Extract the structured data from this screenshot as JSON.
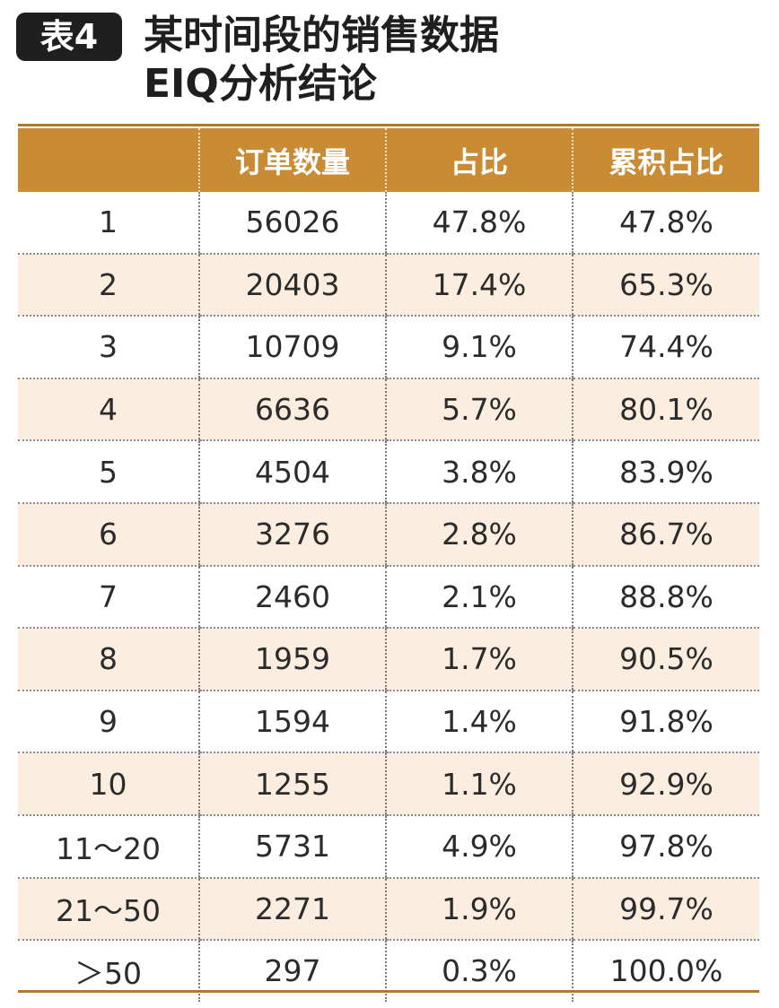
{
  "title": {
    "badge": "表4",
    "line1": "某时间段的销售数据",
    "line2": "EIQ分析结论"
  },
  "colors": {
    "header_bg": "#c98c35",
    "alt_row_bg": "#fbeee0",
    "rule": "#b07a2a",
    "badge_bg": "#1f1f1f"
  },
  "table": {
    "headers": [
      "",
      "订单数量",
      "占比",
      "累积占比"
    ],
    "rows": [
      [
        "1",
        "56026",
        "47.8%",
        "47.8%"
      ],
      [
        "2",
        "20403",
        "17.4%",
        "65.3%"
      ],
      [
        "3",
        "10709",
        "9.1%",
        "74.4%"
      ],
      [
        "4",
        "6636",
        "5.7%",
        "80.1%"
      ],
      [
        "5",
        "4504",
        "3.8%",
        "83.9%"
      ],
      [
        "6",
        "3276",
        "2.8%",
        "86.7%"
      ],
      [
        "7",
        "2460",
        "2.1%",
        "88.8%"
      ],
      [
        "8",
        "1959",
        "1.7%",
        "90.5%"
      ],
      [
        "9",
        "1594",
        "1.4%",
        "91.8%"
      ],
      [
        "10",
        "1255",
        "1.1%",
        "92.9%"
      ],
      [
        "11～20",
        "5731",
        "4.9%",
        "97.8%"
      ],
      [
        "21～50",
        "2271",
        "1.9%",
        "99.7%"
      ],
      [
        "＞50",
        "297",
        "0.3%",
        "100.0%"
      ]
    ]
  }
}
